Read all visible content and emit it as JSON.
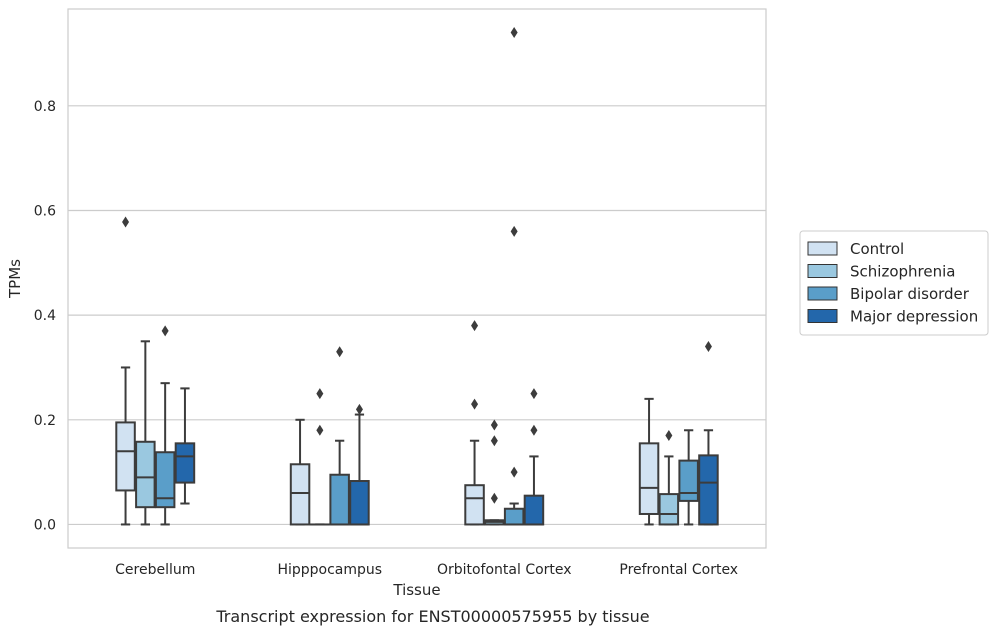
{
  "chart_data": {
    "type": "boxplot",
    "title": "",
    "caption": "Transcript expression for ENST00000575955 by tissue",
    "xlabel": "Tissue",
    "ylabel": "TPMs",
    "categories": [
      "Cerebellum",
      "Hipppocampus",
      "Orbitofontal Cortex",
      "Prefrontal Cortex"
    ],
    "ylim": [
      -0.045,
      0.985
    ],
    "yticks": [
      {
        "value": 0.0,
        "label": "0.0"
      },
      {
        "value": 0.2,
        "label": "0.2"
      },
      {
        "value": 0.4,
        "label": "0.4"
      },
      {
        "value": 0.6,
        "label": "0.6"
      },
      {
        "value": 0.8,
        "label": "0.8"
      }
    ],
    "grid": "horizontal",
    "legend_position": "right",
    "series": [
      {
        "name": "Control",
        "color": "#d1e2f2",
        "boxes": [
          {
            "min": 0.0,
            "q1": 0.065,
            "median": 0.14,
            "q3": 0.195,
            "max": 0.3,
            "outliers": [
              0.578
            ]
          },
          {
            "min": 0.0,
            "q1": 0.0,
            "median": 0.06,
            "q3": 0.115,
            "max": 0.2,
            "outliers": []
          },
          {
            "min": 0.0,
            "q1": 0.0,
            "median": 0.05,
            "q3": 0.075,
            "max": 0.16,
            "outliers": [
              0.23,
              0.38
            ]
          },
          {
            "min": 0.0,
            "q1": 0.02,
            "median": 0.07,
            "q3": 0.155,
            "max": 0.24,
            "outliers": []
          }
        ]
      },
      {
        "name": "Schizophrenia",
        "color": "#9ac8e0",
        "boxes": [
          {
            "min": 0.0,
            "q1": 0.033,
            "median": 0.09,
            "q3": 0.158,
            "max": 0.35,
            "outliers": []
          },
          {
            "min": 0.0,
            "q1": 0.0,
            "median": 0.0,
            "q3": 0.0,
            "max": 0.0,
            "outliers": [
              0.18,
              0.25
            ]
          },
          {
            "min": 0.0,
            "q1": 0.0,
            "median": 0.005,
            "q3": 0.008,
            "max": 0.008,
            "outliers": [
              0.05,
              0.16,
              0.19
            ]
          },
          {
            "min": 0.0,
            "q1": 0.0,
            "median": 0.02,
            "q3": 0.058,
            "max": 0.13,
            "outliers": [
              0.17
            ]
          }
        ]
      },
      {
        "name": "Bipolar disorder",
        "color": "#5a9ec9",
        "boxes": [
          {
            "min": 0.0,
            "q1": 0.033,
            "median": 0.05,
            "q3": 0.138,
            "max": 0.27,
            "outliers": [
              0.37
            ]
          },
          {
            "min": 0.0,
            "q1": 0.0,
            "median": 0.0,
            "q3": 0.095,
            "max": 0.16,
            "outliers": [
              0.33
            ]
          },
          {
            "min": 0.0,
            "q1": 0.0,
            "median": 0.0,
            "q3": 0.03,
            "max": 0.04,
            "outliers": [
              0.1,
              0.56,
              0.94
            ]
          },
          {
            "min": 0.0,
            "q1": 0.045,
            "median": 0.06,
            "q3": 0.122,
            "max": 0.18,
            "outliers": []
          }
        ]
      },
      {
        "name": "Major depression",
        "color": "#2367ab",
        "boxes": [
          {
            "min": 0.04,
            "q1": 0.08,
            "median": 0.13,
            "q3": 0.155,
            "max": 0.26,
            "outliers": []
          },
          {
            "min": 0.0,
            "q1": 0.0,
            "median": 0.0,
            "q3": 0.083,
            "max": 0.21,
            "outliers": [
              0.22
            ]
          },
          {
            "min": 0.0,
            "q1": 0.0,
            "median": 0.0,
            "q3": 0.055,
            "max": 0.13,
            "outliers": [
              0.18,
              0.25
            ]
          },
          {
            "min": 0.0,
            "q1": 0.0,
            "median": 0.08,
            "q3": 0.132,
            "max": 0.18,
            "outliers": [
              0.34
            ]
          }
        ]
      }
    ]
  }
}
